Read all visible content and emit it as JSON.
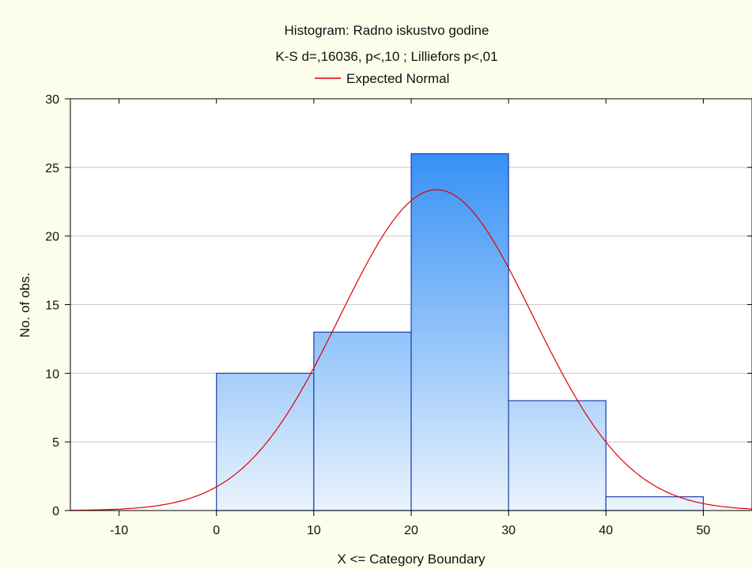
{
  "chart_data": {
    "type": "bar",
    "title": "Histogram: Radno iskustvo  godine",
    "subtitle": "K-S d=,16036, p<,10 ; Lilliefors p<,01",
    "xlabel": "X <= Category Boundary",
    "ylabel": "No. of obs.",
    "xlim": [
      -15,
      55
    ],
    "ylim": [
      0,
      30
    ],
    "x_ticks": [
      -10,
      0,
      10,
      20,
      30,
      40,
      50
    ],
    "y_ticks": [
      0,
      5,
      10,
      15,
      20,
      25,
      30
    ],
    "grid": "horizontal",
    "legend_position": "top-center",
    "bins": [
      {
        "from": 0,
        "to": 10,
        "value": 10
      },
      {
        "from": 10,
        "to": 20,
        "value": 13
      },
      {
        "from": 20,
        "to": 30,
        "value": 26
      },
      {
        "from": 30,
        "to": 40,
        "value": 8
      },
      {
        "from": 40,
        "to": 50,
        "value": 1
      }
    ],
    "series": [
      {
        "name": "Expected Normal",
        "type": "line",
        "color": "#e00000",
        "mean": 22.6,
        "sd": 9.9,
        "total": 58,
        "bin_width": 10
      }
    ],
    "colors": {
      "bar_top": "#2f8cf5",
      "bar_bottom": "#eaf4fd",
      "bar_stroke": "#1d3fb0",
      "curve": "#e00000",
      "plot_bg": "#ffffff",
      "page_bg": "#fdfdeb",
      "grid": "#c8c8c8"
    }
  }
}
